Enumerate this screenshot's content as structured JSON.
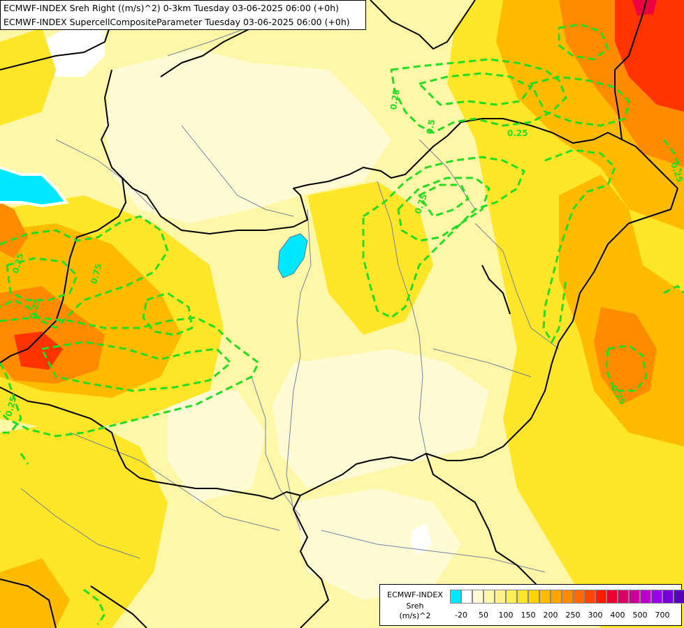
{
  "header": {
    "line1": "ECMWF-INDEX Sreh Right ((m/s)^2) 0-3km Tuesday 03-06-2025 06:00 (+0h)",
    "line2": "ECMWF-INDEX SupercellCompositeParameter Tuesday 03-06-2025 06:00 (+0h)"
  },
  "legend": {
    "title": "ECMWF-INDEX",
    "variable": "Sreh",
    "unit": "(m/s)^2",
    "colors": [
      "#00e8ff",
      "#ffffff",
      "#fffbd5",
      "#fff7a8",
      "#fff38a",
      "#ffee55",
      "#ffe522",
      "#ffd400",
      "#ffbb00",
      "#ffa500",
      "#ff8c00",
      "#ff6a00",
      "#ff4500",
      "#ff1a00",
      "#ee0033",
      "#dd0066",
      "#cc0099",
      "#bb00cc",
      "#9900ee",
      "#7700dd",
      "#5500bb",
      "#330099",
      "#110077"
    ],
    "ticks": [
      "-20",
      "50",
      "100",
      "150",
      "200",
      "250",
      "300",
      "400",
      "500",
      "700"
    ]
  },
  "contour_labels": [
    "0.25",
    "0.5",
    "0.75",
    "0.25",
    "0.25",
    "0.75",
    "0.25",
    "0.25",
    "0.25",
    "0.25"
  ],
  "colors": {
    "contour": "#22dd22",
    "border": "#000000",
    "river": "#5a6fa0",
    "lake": "#00e8ff"
  }
}
